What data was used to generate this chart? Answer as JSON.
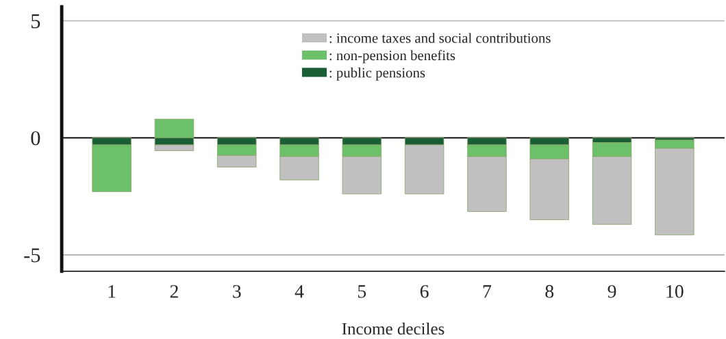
{
  "chart_data": {
    "type": "bar",
    "stacked": true,
    "xlabel": "Income deciles",
    "categories": [
      "1",
      "2",
      "3",
      "4",
      "5",
      "6",
      "7",
      "8",
      "9",
      "10"
    ],
    "series": [
      {
        "name": ": public pensions",
        "color": "#1a5e35",
        "values": [
          -0.3,
          -0.3,
          -0.3,
          -0.3,
          -0.3,
          -0.3,
          -0.3,
          -0.3,
          -0.2,
          -0.1
        ]
      },
      {
        "name": ": non-pension benefits",
        "color": "#6cc06a",
        "values": [
          -2.0,
          0.8,
          -0.45,
          -0.5,
          -0.5,
          null,
          -0.5,
          -0.6,
          -0.6,
          -0.35
        ]
      },
      {
        "name": ": income taxes and social contributions",
        "color": "#c0c0c0",
        "values": [
          null,
          -0.25,
          -0.5,
          -1.0,
          -1.6,
          -2.1,
          -2.35,
          -2.6,
          -2.9,
          -3.7
        ]
      }
    ],
    "ylim": [
      -5.7,
      5.6
    ],
    "yticks": [
      -5,
      0,
      5
    ],
    "grid": "y",
    "legend": "top",
    "ref_lines": [
      {
        "axis": "y",
        "value": 0,
        "color": "#000000"
      }
    ]
  }
}
